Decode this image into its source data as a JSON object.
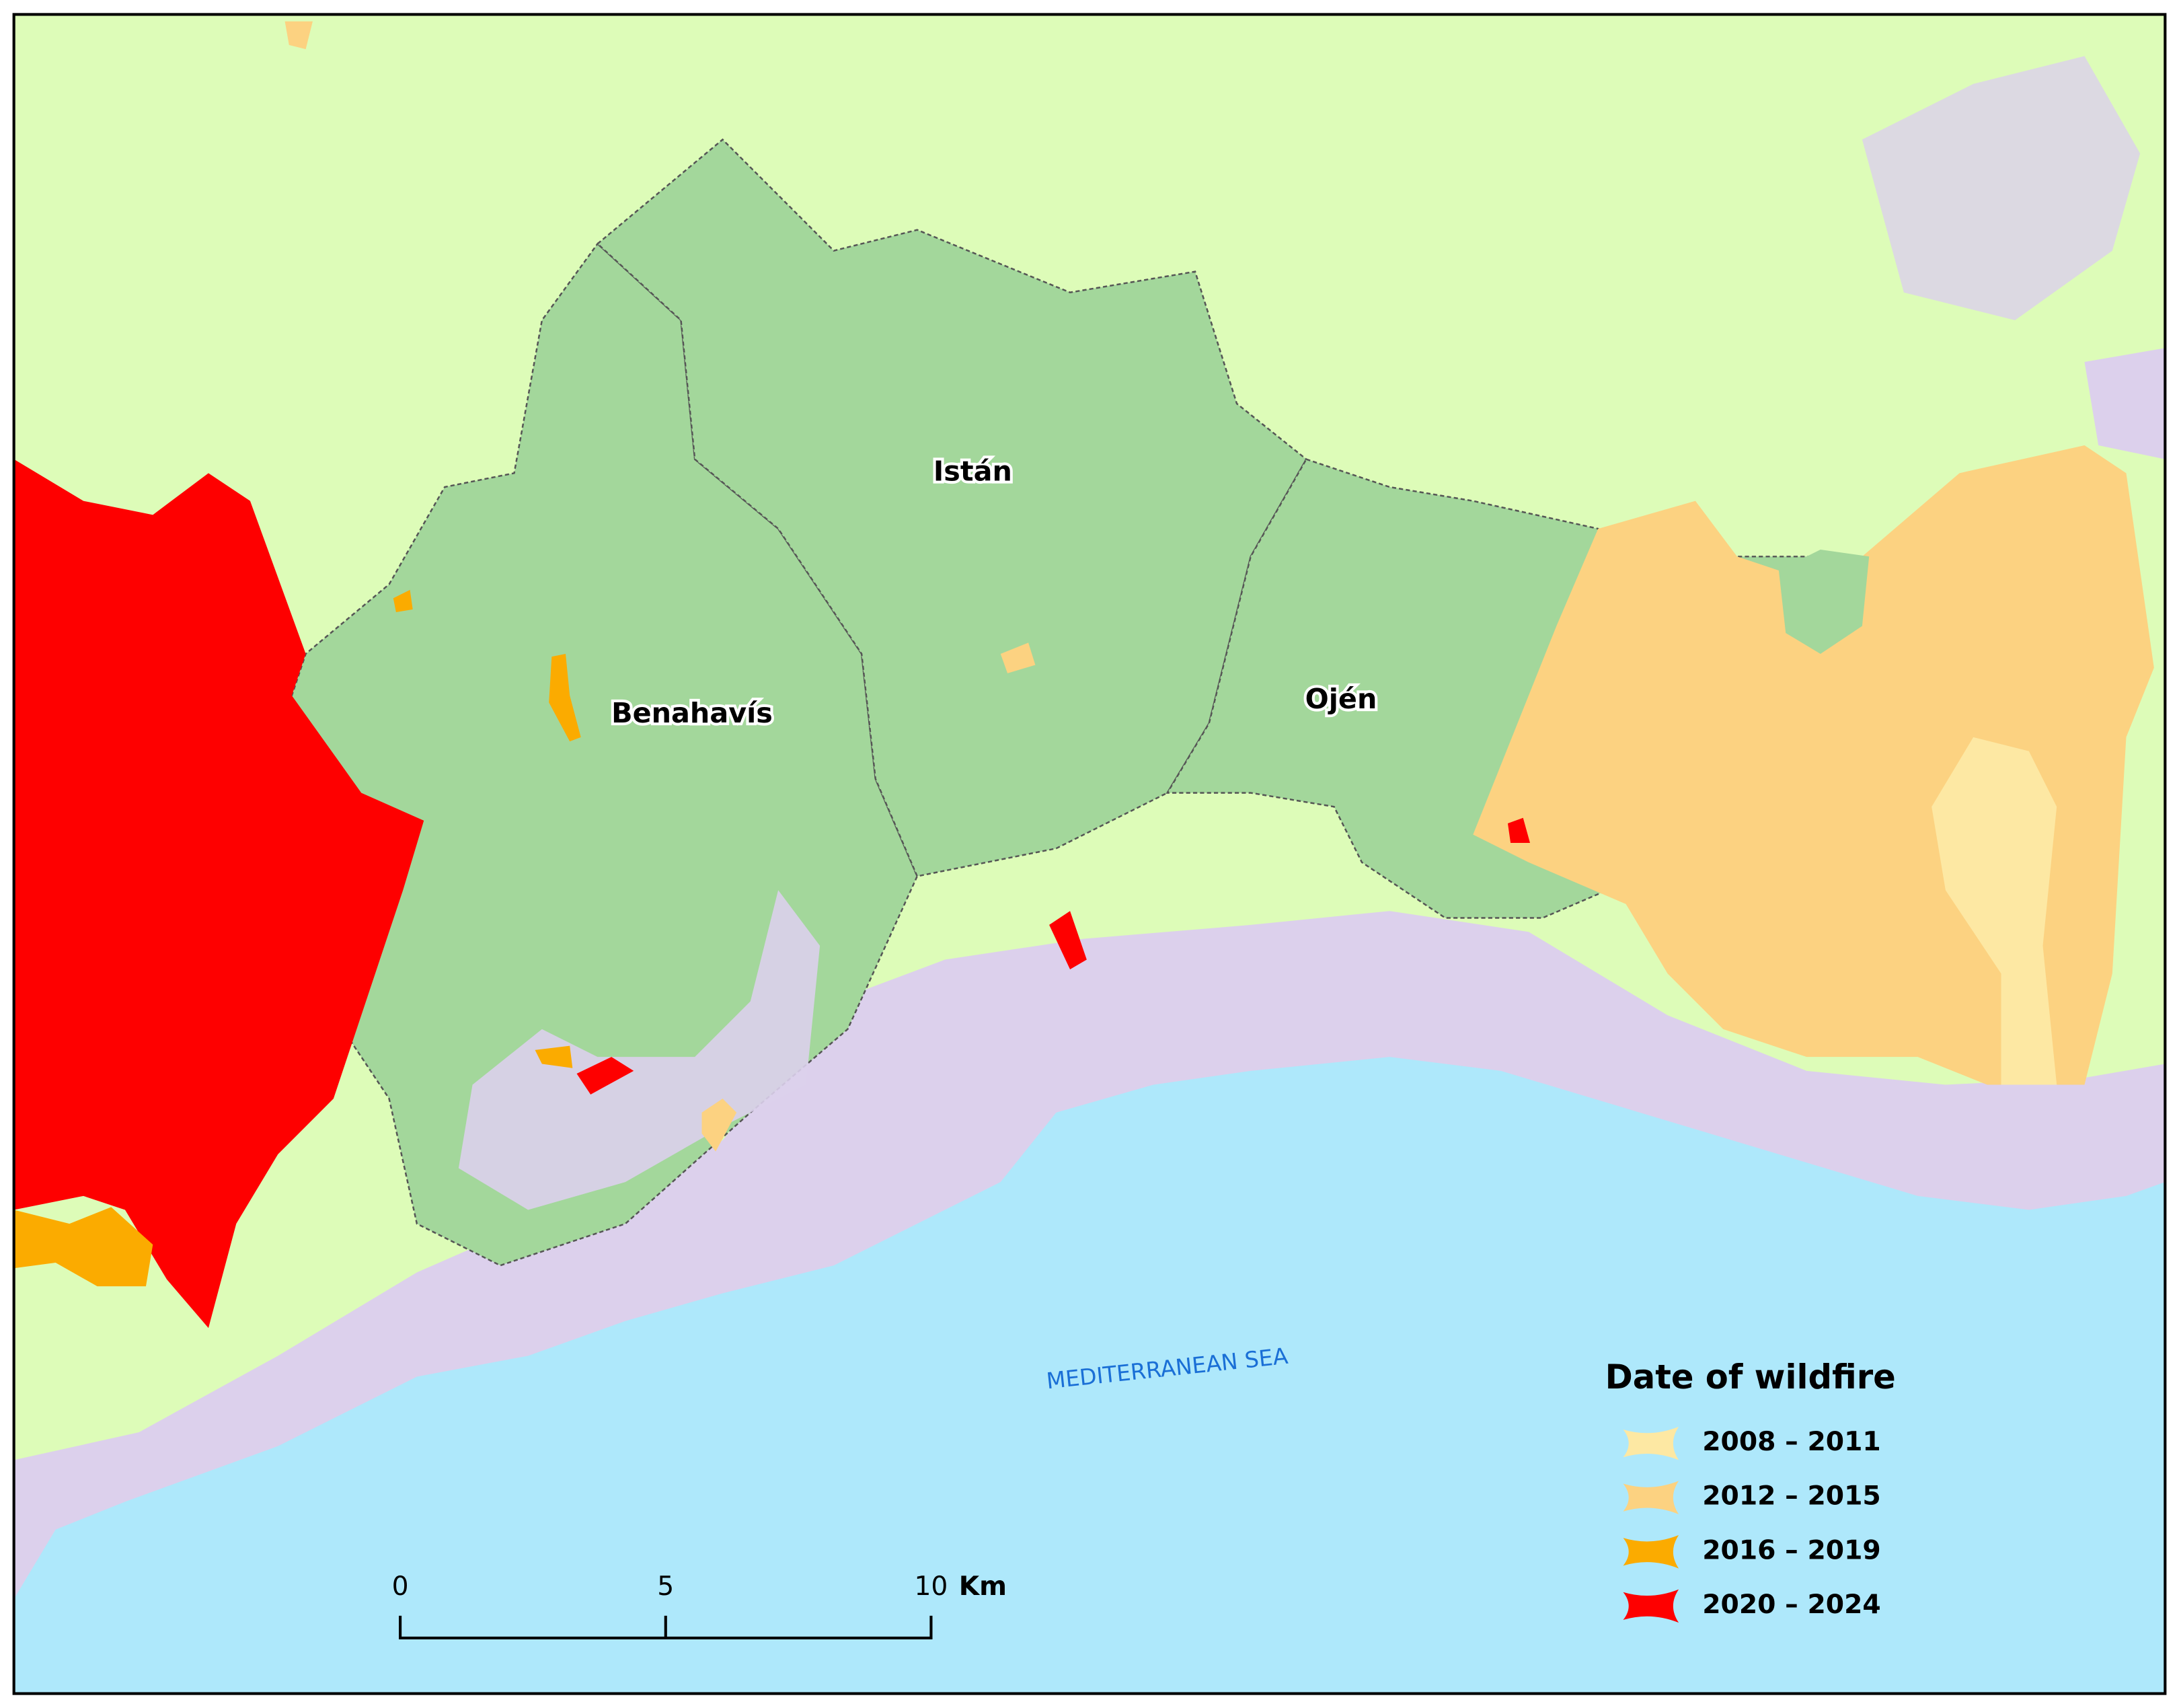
{
  "map": {
    "municipalities": [
      {
        "name": "Benahavís"
      },
      {
        "name": "Istán"
      },
      {
        "name": "Ojén"
      }
    ],
    "sea_label": "MEDITERRANEAN SEA",
    "legend": {
      "title": "Date of wildfire",
      "items": [
        {
          "label": "2008 – 2011",
          "color": "#fde8a3"
        },
        {
          "label": "2012 – 2015",
          "color": "#fcd281"
        },
        {
          "label": "2016 – 2019",
          "color": "#fbab00"
        },
        {
          "label": "2020 – 2024",
          "color": "#fe0000"
        }
      ]
    },
    "scale_bar": {
      "ticks": [
        0,
        5,
        10
      ],
      "unit": "Km"
    }
  }
}
